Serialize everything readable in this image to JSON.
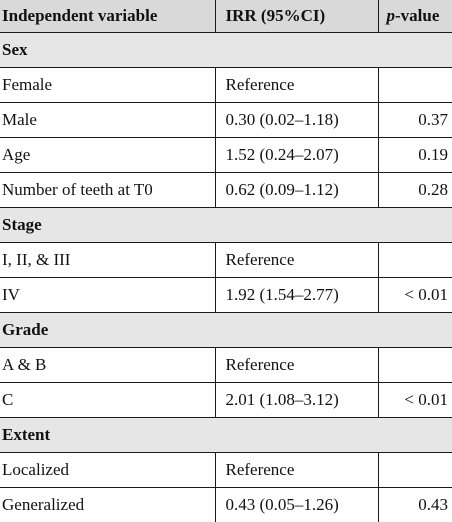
{
  "table": {
    "headers": {
      "variable": "Independent variable",
      "irr": "IRR (95%CI)",
      "p_prefix": "p",
      "p_suffix": "-value"
    },
    "rows": [
      {
        "kind": "section",
        "label": "Sex"
      },
      {
        "kind": "row",
        "label": "Female",
        "irr": "Reference",
        "p": ""
      },
      {
        "kind": "row",
        "label": "Male",
        "irr": "0.30 (0.02–1.18)",
        "p": "0.37"
      },
      {
        "kind": "row",
        "label": "Age",
        "irr": "1.52 (0.24–2.07)",
        "p": "0.19"
      },
      {
        "kind": "row",
        "label": "Number of teeth at T0",
        "irr": "0.62 (0.09–1.12)",
        "p": "0.28"
      },
      {
        "kind": "section",
        "label": "Stage"
      },
      {
        "kind": "row",
        "label": "I, II, & III",
        "irr": "Reference",
        "p": ""
      },
      {
        "kind": "row",
        "label": "IV",
        "irr": "1.92 (1.54–2.77)",
        "p": "< 0.01"
      },
      {
        "kind": "section",
        "label": "Grade"
      },
      {
        "kind": "row",
        "label": "A & B",
        "irr": "Reference",
        "p": ""
      },
      {
        "kind": "row",
        "label": "C",
        "irr": "2.01 (1.08–3.12)",
        "p": "< 0.01"
      },
      {
        "kind": "section",
        "label": "Extent"
      },
      {
        "kind": "row",
        "label": "Localized",
        "irr": "Reference",
        "p": ""
      },
      {
        "kind": "row",
        "label": "Generalized",
        "irr": "0.43 (0.05–1.26)",
        "p": "0.43"
      }
    ]
  }
}
